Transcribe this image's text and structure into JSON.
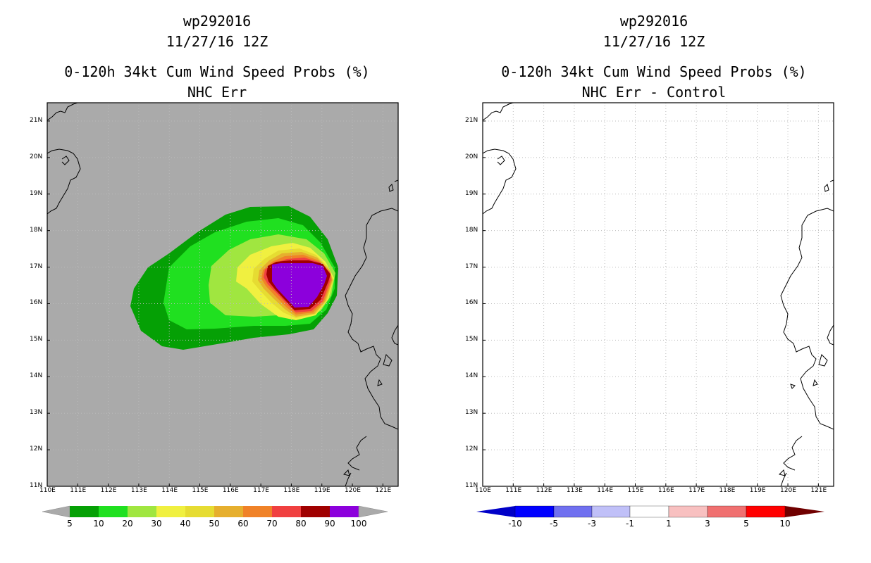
{
  "left": {
    "title_storm": "wp292016",
    "title_time": "11/27/16 12Z",
    "title_product": "0-120h 34kt Cum Wind Speed Probs (%)",
    "title_sub": "NHC Err",
    "background_color": "#aaaaaa",
    "colorbar_labels": [
      "5",
      "10",
      "20",
      "30",
      "40",
      "50",
      "60",
      "70",
      "80",
      "90",
      "100"
    ],
    "colorbar_colors": [
      "#05a005",
      "#20e020",
      "#a0e640",
      "#f0f040",
      "#e6dc32",
      "#e6af2e",
      "#f08228",
      "#f04040",
      "#a00000",
      "#8c00dc"
    ]
  },
  "right": {
    "title_storm": "wp292016",
    "title_time": "11/27/16 12Z",
    "title_product": "0-120h 34kt Cum Wind Speed Probs (%)",
    "title_sub": "NHC Err - Control",
    "background_color": "#ffffff",
    "colorbar_labels": [
      "-10",
      "-5",
      "-3",
      "-1",
      "1",
      "3",
      "5",
      "10"
    ],
    "colorbar_colors": [
      "#0000c8",
      "#0000ff",
      "#7070f0",
      "#c0c0f8",
      "#ffffff",
      "#f8c0c0",
      "#f07070",
      "#ff0000",
      "#c80000",
      "#700000"
    ]
  },
  "axes": {
    "lon_labels": [
      "110E",
      "111E",
      "112E",
      "113E",
      "114E",
      "115E",
      "116E",
      "117E",
      "118E",
      "119E",
      "120E",
      "121E"
    ],
    "lat_labels": [
      "21N",
      "20N",
      "19N",
      "18N",
      "17N",
      "16N",
      "15N",
      "14N",
      "13N",
      "12N",
      "11N"
    ],
    "lon_range": [
      110,
      121.5
    ],
    "lat_range": [
      11,
      21.5
    ]
  },
  "probability_field": {
    "units": "%",
    "contour_levels": [
      5,
      10,
      20,
      30,
      40,
      50,
      60,
      70,
      80,
      90,
      100
    ],
    "peak_center_lon": 118.2,
    "peak_center_lat": 16.7
  },
  "colors": {
    "coast": "#000000",
    "grid": "#bbbbbb"
  }
}
